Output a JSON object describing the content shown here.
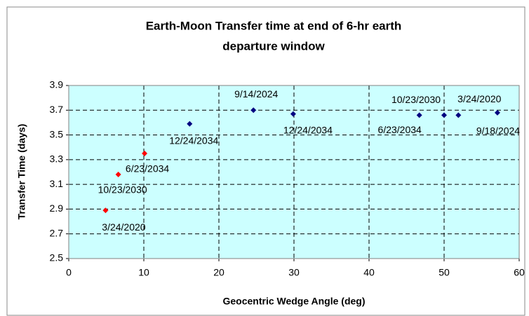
{
  "chart_data": {
    "type": "scatter",
    "title": [
      "Earth-Moon Transfer time at end of 6-hr earth",
      "departure window"
    ],
    "x_label": "Geocentric Wedge Angle (deg)",
    "y_label": "Transfer Time (days)",
    "xlim": [
      0,
      60
    ],
    "xticks": [
      0,
      10,
      20,
      30,
      40,
      50,
      60
    ],
    "ylim": [
      2.5,
      3.9
    ],
    "yticks": [
      2.5,
      2.7,
      2.9,
      3.1,
      3.3,
      3.5,
      3.7,
      3.9
    ],
    "grid": true,
    "series": [
      {
        "color": "#ff0000",
        "x": [
          4.9,
          6.6,
          10.1
        ],
        "values": [
          2.89,
          3.18,
          3.35
        ],
        "labels": [
          "3/24/2020",
          "10/23/2030",
          "6/23/2034"
        ]
      },
      {
        "color": "#000080",
        "x": [
          16.1,
          24.6,
          29.9,
          46.7,
          50.0,
          51.9,
          57.1
        ],
        "values": [
          3.59,
          3.7,
          3.67,
          3.66,
          3.66,
          3.66,
          3.68
        ],
        "labels": [
          "12/24/2034",
          "9/14/2024",
          "12/24/2034",
          "6/23/2034",
          "10/23/2030",
          "3/24/2020",
          "9/18/2024"
        ]
      }
    ]
  }
}
